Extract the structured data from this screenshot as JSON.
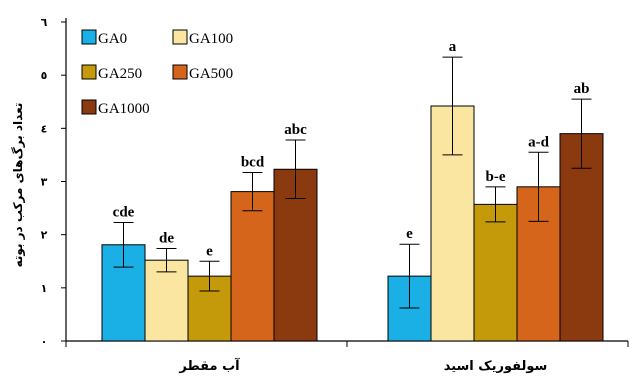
{
  "chart_data": {
    "type": "bar",
    "ylabel": "تعداد برگ‌های مرکب در بوته",
    "ylim": [
      0,
      6
    ],
    "yticks": [
      {
        "value": 0,
        "label": "٠"
      },
      {
        "value": 1,
        "label": "١"
      },
      {
        "value": 2,
        "label": "٢"
      },
      {
        "value": 3,
        "label": "٣"
      },
      {
        "value": 4,
        "label": "٤"
      },
      {
        "value": 5,
        "label": "٥"
      },
      {
        "value": 6,
        "label": "٦"
      }
    ],
    "categories": [
      "آب مقطر",
      "سولفوریک اسید"
    ],
    "legend_position": "top-left",
    "series": [
      {
        "name": "GA0",
        "color": "#1ab0e6",
        "values": [
          1.81,
          1.22
        ],
        "errors": [
          0.42,
          0.6
        ],
        "sig": [
          "cde",
          "e"
        ]
      },
      {
        "name": "GA100",
        "color": "#fae6a0",
        "values": [
          1.52,
          4.42
        ],
        "errors": [
          0.22,
          0.92
        ],
        "sig": [
          "de",
          "a"
        ]
      },
      {
        "name": "GA250",
        "color": "#c49a0a",
        "values": [
          1.22,
          2.57
        ],
        "errors": [
          0.28,
          0.33
        ],
        "sig": [
          "e",
          "b-e"
        ]
      },
      {
        "name": "GA500",
        "color": "#d4651a",
        "values": [
          2.81,
          2.9
        ],
        "errors": [
          0.36,
          0.65
        ],
        "sig": [
          "bcd",
          "a-d"
        ]
      },
      {
        "name": "GA1000",
        "color": "#8b3a10",
        "values": [
          3.23,
          3.9
        ],
        "errors": [
          0.55,
          0.65
        ],
        "sig": [
          "abc",
          "ab"
        ]
      }
    ]
  }
}
